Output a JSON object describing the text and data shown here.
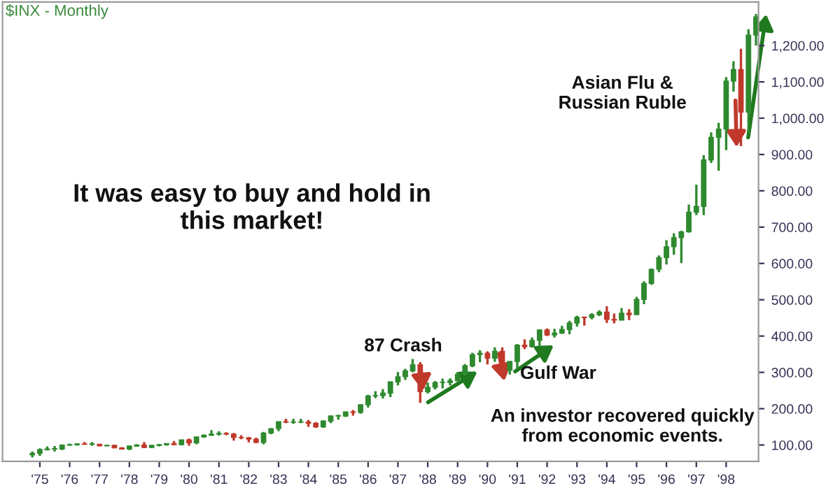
{
  "chart_data": {
    "type": "candlestick",
    "title": "$INX - Monthly",
    "x": [
      "1974-10",
      "1975-01",
      "1975-04",
      "1975-07",
      "1975-10",
      "1976-01",
      "1976-04",
      "1976-07",
      "1976-10",
      "1977-01",
      "1977-04",
      "1977-07",
      "1977-10",
      "1978-01",
      "1978-04",
      "1978-07",
      "1978-10",
      "1979-01",
      "1979-04",
      "1979-07",
      "1979-10",
      "1980-01",
      "1980-04",
      "1980-07",
      "1980-10",
      "1981-01",
      "1981-04",
      "1981-07",
      "1981-10",
      "1982-01",
      "1982-04",
      "1982-07",
      "1982-10",
      "1983-01",
      "1983-04",
      "1983-07",
      "1983-10",
      "1984-01",
      "1984-04",
      "1984-07",
      "1984-10",
      "1985-01",
      "1985-04",
      "1985-07",
      "1985-10",
      "1986-01",
      "1986-04",
      "1986-07",
      "1986-10",
      "1987-01",
      "1987-04",
      "1987-07",
      "1987-10",
      "1988-01",
      "1988-04",
      "1988-07",
      "1988-10",
      "1989-01",
      "1989-04",
      "1989-07",
      "1989-10",
      "1990-01",
      "1990-04",
      "1990-07",
      "1990-10",
      "1991-01",
      "1991-04",
      "1991-07",
      "1991-10",
      "1992-01",
      "1992-04",
      "1992-07",
      "1992-10",
      "1993-01",
      "1993-04",
      "1993-07",
      "1993-10",
      "1994-01",
      "1994-04",
      "1994-07",
      "1994-10",
      "1995-01",
      "1995-04",
      "1995-07",
      "1995-10",
      "1996-01",
      "1996-04",
      "1996-07",
      "1996-10",
      "1997-01",
      "1997-04",
      "1997-07",
      "1997-10",
      "1998-01",
      "1998-04",
      "1998-07",
      "1998-10",
      "1999-01"
    ],
    "ohlc": [
      [
        73,
        82,
        66,
        77
      ],
      [
        77,
        91,
        70,
        87
      ],
      [
        87,
        96,
        85,
        89
      ],
      [
        89,
        97,
        82,
        89
      ],
      [
        89,
        101,
        86,
        100
      ],
      [
        100,
        104,
        98,
        101
      ],
      [
        101,
        105,
        98,
        103
      ],
      [
        103,
        108,
        101,
        102
      ],
      [
        102,
        108,
        98,
        102
      ],
      [
        102,
        103,
        96,
        98
      ],
      [
        98,
        101,
        96,
        99
      ],
      [
        99,
        101,
        91,
        92
      ],
      [
        92,
        94,
        88,
        89
      ],
      [
        89,
        99,
        86,
        97
      ],
      [
        97,
        102,
        95,
        100
      ],
      [
        100,
        108,
        92,
        93
      ],
      [
        93,
        100,
        92,
        99
      ],
      [
        99,
        103,
        96,
        101
      ],
      [
        101,
        105,
        98,
        104
      ],
      [
        104,
        111,
        100,
        101
      ],
      [
        101,
        115,
        99,
        114
      ],
      [
        114,
        118,
        98,
        106
      ],
      [
        106,
        123,
        102,
        122
      ],
      [
        122,
        129,
        120,
        127
      ],
      [
        127,
        141,
        125,
        130
      ],
      [
        130,
        138,
        126,
        132
      ],
      [
        132,
        135,
        127,
        130
      ],
      [
        130,
        133,
        112,
        121
      ],
      [
        121,
        127,
        116,
        120
      ],
      [
        120,
        122,
        107,
        116
      ],
      [
        116,
        120,
        105,
        107
      ],
      [
        107,
        136,
        102,
        133
      ],
      [
        133,
        146,
        130,
        145
      ],
      [
        145,
        165,
        138,
        164
      ],
      [
        164,
        172,
        160,
        163
      ],
      [
        163,
        172,
        158,
        163
      ],
      [
        163,
        172,
        160,
        163
      ],
      [
        163,
        169,
        150,
        160
      ],
      [
        160,
        163,
        147,
        150
      ],
      [
        150,
        168,
        147,
        166
      ],
      [
        166,
        181,
        160,
        180
      ],
      [
        180,
        183,
        170,
        180
      ],
      [
        180,
        192,
        177,
        191
      ],
      [
        191,
        196,
        181,
        190
      ],
      [
        190,
        212,
        186,
        211
      ],
      [
        211,
        238,
        203,
        235
      ],
      [
        235,
        248,
        229,
        236
      ],
      [
        236,
        254,
        228,
        243
      ],
      [
        243,
        275,
        232,
        274
      ],
      [
        274,
        301,
        264,
        288
      ],
      [
        288,
        310,
        279,
        304
      ],
      [
        304,
        337,
        300,
        321
      ],
      [
        321,
        328,
        216,
        247
      ],
      [
        247,
        272,
        242,
        259
      ],
      [
        259,
        276,
        253,
        272
      ],
      [
        272,
        283,
        256,
        272
      ],
      [
        272,
        284,
        264,
        277
      ],
      [
        277,
        301,
        275,
        295
      ],
      [
        295,
        323,
        290,
        318
      ],
      [
        318,
        354,
        314,
        349
      ],
      [
        349,
        361,
        328,
        353
      ],
      [
        353,
        358,
        322,
        339
      ],
      [
        339,
        369,
        329,
        358
      ],
      [
        358,
        369,
        295,
        306
      ],
      [
        306,
        331,
        294,
        330
      ],
      [
        330,
        378,
        311,
        375
      ],
      [
        375,
        391,
        364,
        371
      ],
      [
        371,
        396,
        368,
        388
      ],
      [
        388,
        418,
        370,
        417
      ],
      [
        417,
        421,
        400,
        403
      ],
      [
        403,
        420,
        396,
        408
      ],
      [
        408,
        428,
        406,
        418
      ],
      [
        418,
        442,
        405,
        436
      ],
      [
        436,
        456,
        426,
        452
      ],
      [
        452,
        454,
        429,
        451
      ],
      [
        451,
        463,
        446,
        459
      ],
      [
        459,
        471,
        455,
        466
      ],
      [
        466,
        482,
        436,
        446
      ],
      [
        446,
        462,
        435,
        444
      ],
      [
        444,
        477,
        443,
        463
      ],
      [
        463,
        474,
        444,
        459
      ],
      [
        459,
        508,
        459,
        501
      ],
      [
        501,
        551,
        488,
        545
      ],
      [
        545,
        586,
        541,
        584
      ],
      [
        584,
        622,
        576,
        616
      ],
      [
        616,
        664,
        597,
        646
      ],
      [
        646,
        683,
        624,
        671
      ],
      [
        671,
        690,
        601,
        687
      ],
      [
        687,
        762,
        685,
        741
      ],
      [
        741,
        817,
        733,
        757
      ],
      [
        757,
        898,
        733,
        885
      ],
      [
        885,
        961,
        877,
        947
      ],
      [
        947,
        987,
        855,
        970
      ],
      [
        970,
        1113,
        912,
        1102
      ],
      [
        1102,
        1157,
        1073,
        1134
      ],
      [
        1134,
        1191,
        923,
        1017
      ],
      [
        1017,
        1245,
        960,
        1229
      ],
      [
        1229,
        1287,
        1200,
        1279
      ]
    ],
    "xlim": [
      "1973-10",
      "1999-02"
    ],
    "xticks": [
      {
        "value": "1975-01",
        "label": "'75"
      },
      {
        "value": "1976-01",
        "label": "'76"
      },
      {
        "value": "1977-01",
        "label": "'77"
      },
      {
        "value": "1978-01",
        "label": "'78"
      },
      {
        "value": "1979-01",
        "label": "'79"
      },
      {
        "value": "1980-01",
        "label": "'80"
      },
      {
        "value": "1981-01",
        "label": "'81"
      },
      {
        "value": "1982-01",
        "label": "'82"
      },
      {
        "value": "1983-01",
        "label": "'83"
      },
      {
        "value": "1984-01",
        "label": "'84"
      },
      {
        "value": "1985-01",
        "label": "'85"
      },
      {
        "value": "1986-01",
        "label": "'86"
      },
      {
        "value": "1987-01",
        "label": "'87"
      },
      {
        "value": "1988-01",
        "label": "'88"
      },
      {
        "value": "1989-01",
        "label": "'89"
      },
      {
        "value": "1990-01",
        "label": "'90"
      },
      {
        "value": "1991-01",
        "label": "'91"
      },
      {
        "value": "1992-01",
        "label": "'92"
      },
      {
        "value": "1993-01",
        "label": "'93"
      },
      {
        "value": "1994-01",
        "label": "'94"
      },
      {
        "value": "1995-01",
        "label": "'95"
      },
      {
        "value": "1996-01",
        "label": "'96"
      },
      {
        "value": "1997-01",
        "label": "'97"
      },
      {
        "value": "1998-01",
        "label": "'98"
      }
    ],
    "ylim": [
      55,
      1320
    ],
    "yticks": [
      {
        "value": 100,
        "label": "100.00"
      },
      {
        "value": 200,
        "label": "200.00"
      },
      {
        "value": 300,
        "label": "300.00"
      },
      {
        "value": 400,
        "label": "400.00"
      },
      {
        "value": 500,
        "label": "500.00"
      },
      {
        "value": 600,
        "label": "600.00"
      },
      {
        "value": 700,
        "label": "700.00"
      },
      {
        "value": 800,
        "label": "800.00"
      },
      {
        "value": 900,
        "label": "900.00"
      },
      {
        "value": 1000,
        "label": "1,000.00"
      },
      {
        "value": 1100,
        "label": "1,100.00"
      },
      {
        "value": 1200,
        "label": "1,200.00"
      }
    ],
    "annotations": [
      "It was easy to buy and hold in\nthis market!",
      "87 Crash",
      "Gulf War",
      "Asian Flu &\nRussian Ruble",
      "An investor recovered quickly\nfrom economic events."
    ]
  }
}
